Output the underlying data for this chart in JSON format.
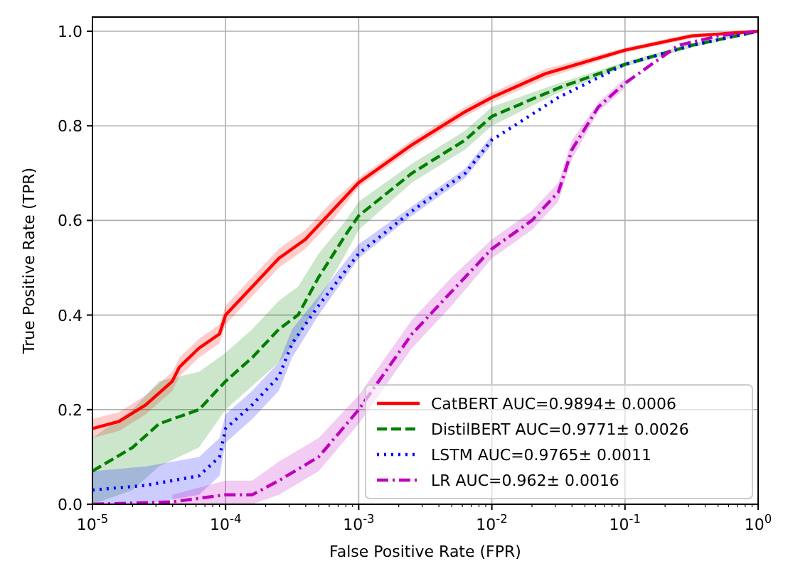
{
  "chart_data": {
    "type": "line",
    "xlabel": "False Positive Rate (FPR)",
    "ylabel": "True Positive Rate (TPR)",
    "log": "x",
    "grid": true,
    "legend": "bottom right",
    "xlim": [
      1e-05,
      1
    ],
    "xticks": [
      {
        "value": 1e-05,
        "label": "10$^{-5}$"
      },
      {
        "value": 0.0001,
        "label": "10$^{-4}$"
      },
      {
        "value": 0.001,
        "label": "10$^{-3}$"
      },
      {
        "value": 0.01,
        "label": "10$^{-2}$"
      },
      {
        "value": 0.1,
        "label": "10$^{-1}$"
      },
      {
        "value": 1,
        "label": "10$^{0}$"
      }
    ],
    "ylim": [
      0,
      1.03
    ],
    "yticks": [
      {
        "value": 0,
        "label": "0.0"
      },
      {
        "value": 0.2,
        "label": "0.2"
      },
      {
        "value": 0.4,
        "label": "0.4"
      },
      {
        "value": 0.6,
        "label": "0.6"
      },
      {
        "value": 0.8,
        "label": "0.8"
      },
      {
        "value": 1,
        "label": "1.0"
      }
    ],
    "series": [
      {
        "name": "CatBERT AUC=0.9894± 0.0006",
        "color": "#ff0000",
        "line_style": "solid",
        "x": [
          1e-05,
          1.585e-05,
          2.512e-05,
          3.981e-05,
          4.5e-05,
          6.31e-05,
          9e-05,
          0.0001,
          0.0001585,
          0.0002512,
          0.0003981,
          0.000631,
          0.001,
          0.002512,
          0.00631,
          0.01,
          0.02512,
          0.1,
          0.316,
          1
        ],
        "values": [
          0.16,
          0.175,
          0.21,
          0.26,
          0.29,
          0.33,
          0.36,
          0.4,
          0.46,
          0.52,
          0.56,
          0.62,
          0.68,
          0.76,
          0.83,
          0.86,
          0.91,
          0.96,
          0.99,
          1.0
        ],
        "lower": [
          0.14,
          0.155,
          0.19,
          0.24,
          0.27,
          0.31,
          0.34,
          0.38,
          0.44,
          0.5,
          0.54,
          0.6,
          0.67,
          0.75,
          0.82,
          0.85,
          0.9,
          0.955,
          0.985,
          1.0
        ],
        "upper": [
          0.18,
          0.195,
          0.23,
          0.28,
          0.31,
          0.35,
          0.38,
          0.42,
          0.48,
          0.54,
          0.58,
          0.64,
          0.69,
          0.77,
          0.84,
          0.87,
          0.92,
          0.965,
          0.995,
          1.0
        ]
      },
      {
        "name": "DistilBERT AUC=0.9771± 0.0026",
        "color": "#008000",
        "line_style": "dashed",
        "x": [
          1e-05,
          2e-05,
          3.162e-05,
          6.31e-05,
          0.0001,
          0.0001585,
          0.0002512,
          0.00035,
          0.0005,
          0.0008,
          0.001,
          0.002512,
          0.00631,
          0.01,
          0.03162,
          0.1,
          0.316,
          1
        ],
        "values": [
          0.07,
          0.12,
          0.17,
          0.2,
          0.26,
          0.31,
          0.37,
          0.4,
          0.48,
          0.57,
          0.61,
          0.7,
          0.77,
          0.82,
          0.88,
          0.93,
          0.97,
          1.0
        ],
        "lower": [
          0.0,
          0.03,
          0.08,
          0.12,
          0.2,
          0.25,
          0.3,
          0.35,
          0.43,
          0.53,
          0.58,
          0.68,
          0.75,
          0.8,
          0.87,
          0.925,
          0.965,
          1.0
        ],
        "upper": [
          0.14,
          0.2,
          0.26,
          0.28,
          0.32,
          0.37,
          0.43,
          0.46,
          0.53,
          0.6,
          0.64,
          0.72,
          0.79,
          0.84,
          0.89,
          0.935,
          0.975,
          1.0
        ]
      },
      {
        "name": "LSTM AUC=0.9765± 0.0011",
        "color": "#0000ff",
        "line_style": "dotted",
        "x": [
          1e-05,
          2.512e-05,
          6.31e-05,
          9e-05,
          0.0001,
          0.0001585,
          0.0002512,
          0.0003162,
          0.0005,
          0.001,
          0.002512,
          0.00631,
          0.01,
          0.03162,
          0.1,
          0.316,
          1
        ],
        "values": [
          0.03,
          0.04,
          0.06,
          0.1,
          0.16,
          0.21,
          0.27,
          0.34,
          0.42,
          0.53,
          0.62,
          0.7,
          0.77,
          0.86,
          0.93,
          0.97,
          1.0
        ],
        "lower": [
          0.0,
          0.0,
          0.02,
          0.06,
          0.13,
          0.18,
          0.24,
          0.31,
          0.4,
          0.52,
          0.61,
          0.69,
          0.76,
          null,
          null,
          null,
          null
        ],
        "upper": [
          0.07,
          0.08,
          0.1,
          0.14,
          0.19,
          0.24,
          0.3,
          0.37,
          0.44,
          0.55,
          0.63,
          0.71,
          0.78,
          null,
          null,
          null,
          null
        ]
      },
      {
        "name": "LR AUC=0.962± 0.0016",
        "color": "#bf00bf",
        "line_style": "dashdot",
        "x": [
          1e-05,
          3.981e-05,
          0.0001,
          0.0001585,
          0.0002512,
          0.0005,
          0.001,
          0.001585,
          0.002512,
          0.005,
          0.01,
          0.02,
          0.03162,
          0.04,
          0.0631,
          0.1,
          0.251,
          0.5,
          1
        ],
        "values": [
          0.0,
          0.005,
          0.02,
          0.02,
          0.05,
          0.1,
          0.2,
          0.28,
          0.36,
          0.45,
          0.54,
          0.6,
          0.66,
          0.75,
          0.84,
          0.89,
          0.97,
          0.99,
          1.0
        ],
        "lower": [
          null,
          0.0,
          0.0,
          0.0,
          0.02,
          0.07,
          0.17,
          0.25,
          0.33,
          0.42,
          0.52,
          0.58,
          0.64,
          0.73,
          0.83,
          0.88,
          null,
          null,
          null
        ],
        "upper": [
          null,
          0.02,
          0.05,
          0.05,
          0.09,
          0.14,
          0.23,
          0.31,
          0.39,
          0.48,
          0.56,
          0.62,
          0.68,
          0.77,
          0.85,
          0.9,
          null,
          null,
          null
        ]
      }
    ]
  }
}
